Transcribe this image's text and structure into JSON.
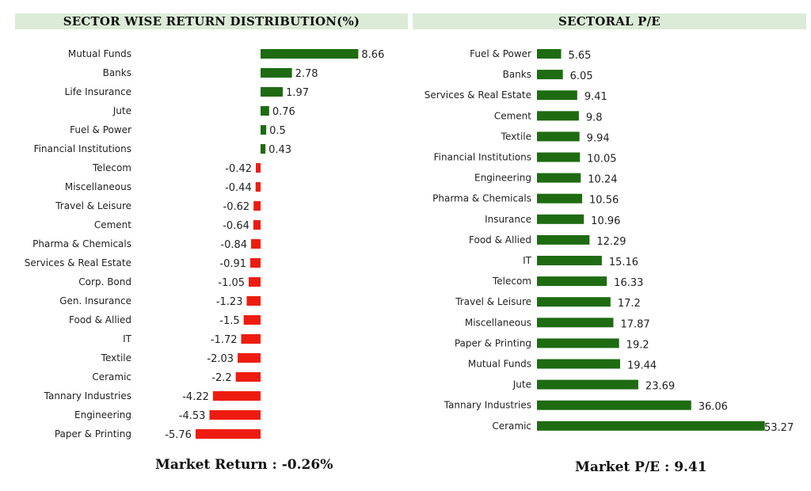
{
  "colors": {
    "positive": "#1e6b12",
    "negative": "#ee1c10",
    "header_bg": "#dcebd8"
  },
  "chart_data": [
    {
      "type": "bar",
      "orientation": "horizontal",
      "title": "SECTOR WISE RETURN DISTRIBUTION(%)",
      "categories": [
        "Mutual Funds",
        "Banks",
        "Life Insurance",
        "Jute",
        "Fuel & Power",
        "Financial Institutions",
        "Telecom",
        "Miscellaneous",
        "Travel & Leisure",
        "Cement",
        "Pharma & Chemicals",
        "Services & Real Estate",
        "Corp. Bond",
        "Gen. Insurance",
        "Food & Allied",
        "IT",
        "Textile",
        "Ceramic",
        "Tannary Industries",
        "Engineering",
        "Paper & Printing"
      ],
      "values": [
        8.66,
        2.78,
        1.97,
        0.76,
        0.5,
        0.43,
        -0.42,
        -0.44,
        -0.62,
        -0.64,
        -0.84,
        -0.91,
        -1.05,
        -1.23,
        -1.5,
        -1.72,
        -2.03,
        -2.2,
        -4.22,
        -4.53,
        -5.76
      ],
      "footer": "Market Return : -0.26%"
    },
    {
      "type": "bar",
      "orientation": "horizontal",
      "title": "SECTORAL P/E",
      "categories": [
        "Fuel & Power",
        "Banks",
        "Services & Real Estate",
        "Cement",
        "Textile",
        "Financial Institutions",
        "Engineering",
        "Pharma & Chemicals",
        "Insurance",
        "Food & Allied",
        "IT",
        "Telecom",
        "Travel & Leisure",
        "Miscellaneous",
        "Paper & Printing",
        "Mutual Funds",
        "Jute",
        "Tannary Industries",
        "Ceramic"
      ],
      "values": [
        5.65,
        6.05,
        9.41,
        9.8,
        9.94,
        10.05,
        10.24,
        10.56,
        10.96,
        12.29,
        15.16,
        16.33,
        17.2,
        17.87,
        19.2,
        19.44,
        23.69,
        36.06,
        53.27
      ],
      "footer": "Market P/E : 9.41"
    }
  ]
}
